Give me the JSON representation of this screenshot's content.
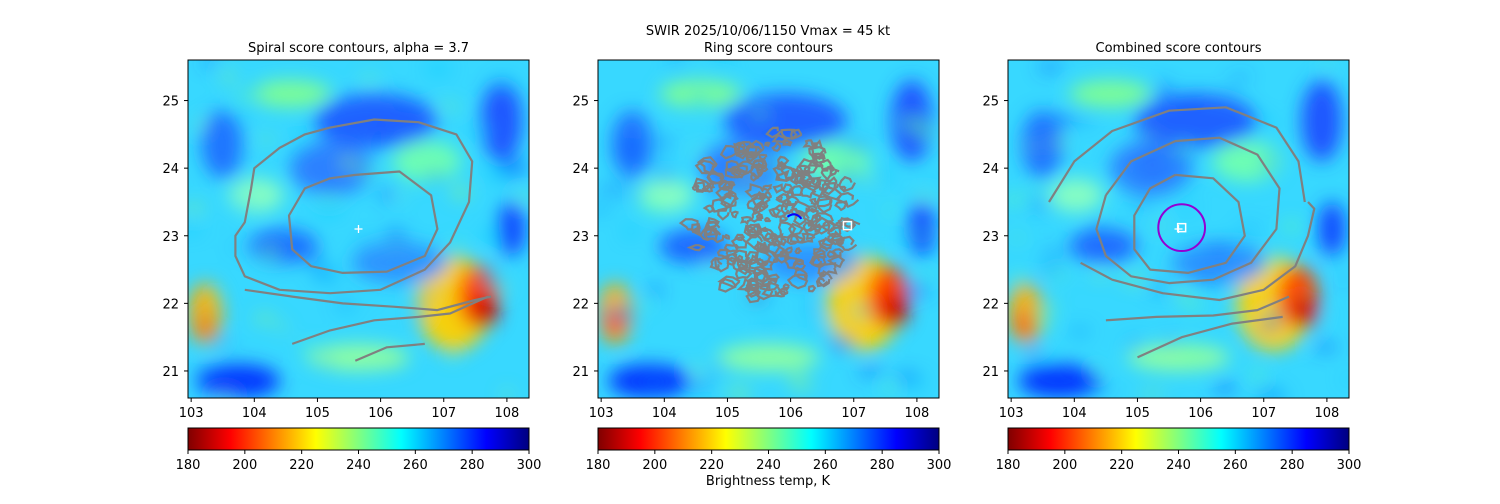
{
  "suptitle": "SWIR  2025/10/06/1150    Vmax = 45 kt",
  "colorbar_label": "Brightness temp, K",
  "colormap": [
    "#800000",
    "#ff0000",
    "#ff8000",
    "#ffff00",
    "#80ff80",
    "#00ffff",
    "#0080ff",
    "#0000ff",
    "#000080"
  ],
  "contour_color": "#808080",
  "marker_color": "#ffffff",
  "circle_color": "#9400d3",
  "chart_data": [
    {
      "type": "heatmap",
      "title": "Spiral score contours, alpha =  3.7",
      "xlim": [
        102.95,
        108.35
      ],
      "ylim": [
        20.6,
        25.6
      ],
      "xticks": [
        103,
        104,
        105,
        106,
        107,
        108
      ],
      "yticks": [
        21,
        22,
        23,
        24,
        25
      ],
      "colorbar": {
        "range": [
          180,
          300
        ],
        "ticks": [
          180,
          200,
          220,
          240,
          260,
          280,
          300
        ]
      },
      "center": [
        105.65,
        23.1
      ],
      "contours": [
        [
          [
            105.2,
            24.6
          ],
          [
            105.9,
            24.72
          ],
          [
            106.6,
            24.68
          ],
          [
            107.2,
            24.5
          ],
          [
            107.45,
            24.1
          ],
          [
            107.4,
            23.5
          ],
          [
            107.1,
            22.9
          ],
          [
            106.7,
            22.5
          ],
          [
            106.0,
            22.2
          ],
          [
            105.2,
            22.15
          ],
          [
            104.4,
            22.2
          ],
          [
            103.85,
            22.4
          ],
          [
            103.7,
            22.7
          ],
          [
            103.7,
            23.0
          ],
          [
            103.85,
            23.2
          ],
          [
            103.95,
            23.7
          ],
          [
            104.0,
            24.0
          ],
          [
            104.4,
            24.3
          ],
          [
            104.8,
            24.5
          ],
          [
            105.2,
            24.6
          ]
        ],
        [
          [
            105.6,
            23.9
          ],
          [
            106.3,
            23.95
          ],
          [
            106.8,
            23.6
          ],
          [
            106.9,
            23.1
          ],
          [
            106.7,
            22.7
          ],
          [
            106.1,
            22.47
          ],
          [
            105.4,
            22.45
          ],
          [
            104.9,
            22.55
          ],
          [
            104.6,
            22.8
          ],
          [
            104.55,
            23.3
          ],
          [
            104.8,
            23.7
          ],
          [
            105.2,
            23.85
          ],
          [
            105.6,
            23.9
          ]
        ],
        [
          [
            103.85,
            22.2
          ],
          [
            104.6,
            22.1
          ],
          [
            105.4,
            22.0
          ],
          [
            106.2,
            21.95
          ],
          [
            106.9,
            21.9
          ],
          [
            107.5,
            22.05
          ],
          [
            107.75,
            22.1
          ]
        ],
        [
          [
            104.6,
            21.4
          ],
          [
            105.2,
            21.6
          ],
          [
            105.9,
            21.75
          ],
          [
            106.6,
            21.8
          ],
          [
            107.1,
            21.85
          ],
          [
            107.7,
            22.1
          ]
        ],
        [
          [
            105.6,
            21.15
          ],
          [
            106.1,
            21.35
          ],
          [
            106.7,
            21.4
          ]
        ]
      ],
      "boxes": []
    },
    {
      "type": "heatmap",
      "title": "Ring score contours",
      "xlim": [
        102.95,
        108.35
      ],
      "ylim": [
        20.6,
        25.6
      ],
      "xticks": [
        103,
        104,
        105,
        106,
        107,
        108
      ],
      "yticks": [
        21,
        22,
        23,
        24,
        25
      ],
      "colorbar": {
        "range": [
          180,
          300
        ],
        "ticks": [
          180,
          200,
          220,
          240,
          260,
          280,
          300
        ]
      },
      "ring_region": {
        "center": [
          105.7,
          23.3
        ],
        "rx": 1.3,
        "ry": 1.25
      },
      "center": null,
      "contours": [],
      "boxes": [
        [
          106.9,
          23.15
        ]
      ]
    },
    {
      "type": "heatmap",
      "title": "Combined score contours",
      "xlim": [
        102.95,
        108.35
      ],
      "ylim": [
        20.6,
        25.6
      ],
      "xticks": [
        103,
        104,
        105,
        106,
        107,
        108
      ],
      "yticks": [
        21,
        22,
        23,
        24,
        25
      ],
      "colorbar": {
        "range": [
          180,
          300
        ],
        "ticks": [
          180,
          200,
          220,
          240,
          260,
          280,
          300
        ]
      },
      "center": [
        105.65,
        23.1
      ],
      "circle": {
        "center": [
          105.7,
          23.12
        ],
        "radius": 0.37
      },
      "contours": [
        [
          [
            103.6,
            23.5
          ],
          [
            104.0,
            24.1
          ],
          [
            104.6,
            24.55
          ],
          [
            105.5,
            24.85
          ],
          [
            106.4,
            24.9
          ],
          [
            107.2,
            24.6
          ],
          [
            107.55,
            24.1
          ],
          [
            107.65,
            23.5
          ]
        ],
        [
          [
            104.5,
            23.6
          ],
          [
            104.9,
            24.1
          ],
          [
            105.6,
            24.4
          ],
          [
            106.3,
            24.45
          ],
          [
            106.9,
            24.2
          ],
          [
            107.25,
            23.7
          ],
          [
            107.2,
            23.1
          ],
          [
            106.8,
            22.6
          ],
          [
            106.2,
            22.35
          ],
          [
            105.5,
            22.3
          ],
          [
            104.9,
            22.4
          ],
          [
            104.5,
            22.7
          ],
          [
            104.35,
            23.1
          ],
          [
            104.5,
            23.6
          ]
        ],
        [
          [
            105.6,
            23.9
          ],
          [
            106.2,
            23.85
          ],
          [
            106.6,
            23.5
          ],
          [
            106.7,
            23.0
          ],
          [
            106.4,
            22.6
          ],
          [
            105.8,
            22.45
          ],
          [
            105.2,
            22.5
          ],
          [
            104.95,
            22.8
          ],
          [
            104.95,
            23.3
          ],
          [
            105.2,
            23.7
          ],
          [
            105.6,
            23.9
          ]
        ],
        [
          [
            104.1,
            22.6
          ],
          [
            104.6,
            22.35
          ],
          [
            105.4,
            22.15
          ],
          [
            106.3,
            22.05
          ],
          [
            107.0,
            22.2
          ],
          [
            107.5,
            22.55
          ],
          [
            107.7,
            23.0
          ],
          [
            107.8,
            23.4
          ],
          [
            107.7,
            23.5
          ]
        ],
        [
          [
            104.5,
            21.75
          ],
          [
            105.3,
            21.8
          ],
          [
            106.2,
            21.82
          ],
          [
            106.9,
            21.9
          ],
          [
            107.4,
            22.1
          ]
        ],
        [
          [
            105.0,
            21.2
          ],
          [
            105.7,
            21.5
          ],
          [
            106.5,
            21.7
          ],
          [
            107.3,
            21.8
          ]
        ]
      ],
      "boxes": [
        [
          105.7,
          23.12
        ]
      ]
    }
  ]
}
